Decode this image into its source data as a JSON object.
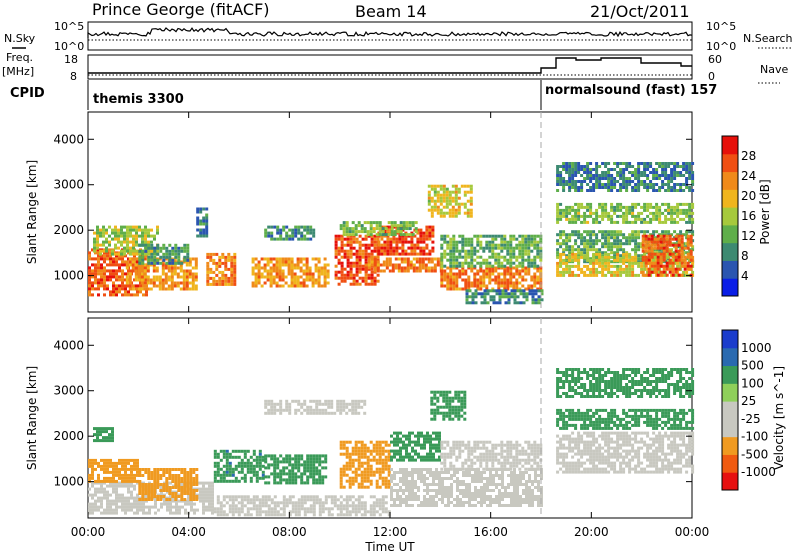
{
  "header": {
    "station": "Prince George (fitACF)",
    "beam": "Beam 14",
    "date": "21/Oct/2011"
  },
  "side_labels": {
    "nsky": "N.Sky",
    "nsearch": "N.Search",
    "freq_1": "Freq.",
    "freq_2": "[MHz]",
    "nave": "Nave",
    "cpid": "CPID"
  },
  "noise_panel": {
    "y_tick_top": "10^5",
    "y_tick_bottom": "10^0",
    "right_tick_top": "10^5",
    "right_tick_bottom": "10^0"
  },
  "freq_panel": {
    "y_ticks": [
      "18",
      "8"
    ],
    "right_ticks": [
      "60",
      "0"
    ]
  },
  "cpid": [
    {
      "label": "themis 3300",
      "start_hour": 0
    },
    {
      "label": "normalsound (fast) 157",
      "start_hour": 18.0
    }
  ],
  "axes": {
    "ylabel": "Slant Range [km]",
    "xlabel": "Time UT",
    "y_ticks": [
      "1000",
      "2000",
      "3000",
      "4000"
    ],
    "x_ticks": [
      "00:00",
      "04:00",
      "08:00",
      "12:00",
      "16:00",
      "20:00",
      "00:00"
    ]
  },
  "colors": {
    "power_scale": [
      "#0a1ee6",
      "#2a55b0",
      "#3d8a72",
      "#5fae4a",
      "#a6c93c",
      "#f0b51e",
      "#f08a1a",
      "#f04f12",
      "#e6100a"
    ],
    "velocity_scale": [
      "#e61010",
      "#f05a10",
      "#f09a20",
      "#c8c8c0",
      "#c8c8c0",
      "#8fd05a",
      "#3a9a58",
      "#2a6ab0",
      "#1a3ccc"
    ],
    "ground_scatter": "#c8c8c0"
  },
  "chart_data": [
    {
      "type": "heatmap",
      "title": "",
      "ylabel": "Slant Range [km]",
      "xlabel": "",
      "xlim": [
        0,
        24
      ],
      "ylim": [
        200,
        4600
      ],
      "colorbar": {
        "label": "Power [dB]",
        "ticks": [
          "4",
          "8",
          "12",
          "16",
          "20",
          "24",
          "28"
        ],
        "range": [
          0,
          32
        ]
      },
      "regions": [
        {
          "t0": 0.0,
          "t1": 2.3,
          "r0": 600,
          "r1": 1600,
          "value": 26
        },
        {
          "t0": 0.2,
          "t1": 2.8,
          "r0": 1500,
          "r1": 2100,
          "value": 16
        },
        {
          "t0": 1.5,
          "t1": 4.3,
          "r0": 700,
          "r1": 1400,
          "value": 22
        },
        {
          "t0": 2.0,
          "t1": 4.0,
          "r0": 1300,
          "r1": 1700,
          "value": 10
        },
        {
          "t0": 4.3,
          "t1": 4.7,
          "r0": 1900,
          "r1": 2500,
          "value": 8
        },
        {
          "t0": 4.7,
          "t1": 5.8,
          "r0": 800,
          "r1": 1500,
          "value": 24
        },
        {
          "t0": 6.5,
          "t1": 9.5,
          "r0": 800,
          "r1": 1400,
          "value": 22
        },
        {
          "t0": 7.0,
          "t1": 9.0,
          "r0": 1800,
          "r1": 2100,
          "value": 9
        },
        {
          "t0": 9.8,
          "t1": 11.5,
          "r0": 800,
          "r1": 1900,
          "value": 27
        },
        {
          "t0": 11.5,
          "t1": 13.7,
          "r0": 1500,
          "r1": 2100,
          "value": 27
        },
        {
          "t0": 10.0,
          "t1": 13.0,
          "r0": 1900,
          "r1": 2200,
          "value": 14
        },
        {
          "t0": 11.0,
          "t1": 14.0,
          "r0": 1100,
          "r1": 1400,
          "value": 24
        },
        {
          "t0": 13.5,
          "t1": 15.2,
          "r0": 2300,
          "r1": 3000,
          "value": 18
        },
        {
          "t0": 14.0,
          "t1": 18.0,
          "r0": 700,
          "r1": 1200,
          "value": 24
        },
        {
          "t0": 14.0,
          "t1": 18.0,
          "r0": 1200,
          "r1": 1900,
          "value": 12
        },
        {
          "t0": 15.0,
          "t1": 18.0,
          "r0": 400,
          "r1": 700,
          "value": 9
        },
        {
          "t0": 18.6,
          "t1": 24.0,
          "r0": 1300,
          "r1": 2000,
          "value": 12
        },
        {
          "t0": 18.6,
          "t1": 24.0,
          "r0": 1000,
          "r1": 1500,
          "value": 18
        },
        {
          "t0": 18.6,
          "t1": 24.0,
          "r0": 2200,
          "r1": 2600,
          "value": 14
        },
        {
          "t0": 18.6,
          "t1": 24.0,
          "r0": 2900,
          "r1": 3500,
          "value": 8
        },
        {
          "t0": 22.0,
          "t1": 24.0,
          "r0": 1000,
          "r1": 1900,
          "value": 26
        }
      ]
    },
    {
      "type": "heatmap",
      "title": "",
      "ylabel": "Slant Range [km]",
      "xlabel": "Time UT",
      "xlim": [
        0,
        24
      ],
      "ylim": [
        200,
        4600
      ],
      "colorbar": {
        "label": "Velocity [m s^-1]",
        "ticks": [
          "-1000",
          "-500",
          "-100",
          "-25",
          "25",
          "100",
          "500",
          "1000"
        ],
        "range": [
          -1200,
          1200
        ]
      },
      "regions": [
        {
          "t0": 0.0,
          "t1": 5.0,
          "r0": 300,
          "r1": 1000,
          "value": 0
        },
        {
          "t0": 0.0,
          "t1": 2.0,
          "r0": 1000,
          "r1": 1500,
          "value": -200
        },
        {
          "t0": 0.2,
          "t1": 1.0,
          "r0": 1900,
          "r1": 2200,
          "value": 150
        },
        {
          "t0": 2.0,
          "t1": 4.3,
          "r0": 600,
          "r1": 1300,
          "value": -300
        },
        {
          "t0": 5.0,
          "t1": 7.0,
          "r0": 1000,
          "r1": 1700,
          "value": 400
        },
        {
          "t0": 7.0,
          "t1": 9.5,
          "r0": 1000,
          "r1": 1600,
          "value": 150
        },
        {
          "t0": 5.0,
          "t1": 12.0,
          "r0": 300,
          "r1": 700,
          "value": 0
        },
        {
          "t0": 7.0,
          "t1": 11.0,
          "r0": 2500,
          "r1": 2800,
          "value": 0
        },
        {
          "t0": 10.0,
          "t1": 12.0,
          "r0": 900,
          "r1": 1900,
          "value": -250
        },
        {
          "t0": 12.0,
          "t1": 14.0,
          "r0": 1500,
          "r1": 2100,
          "value": 300
        },
        {
          "t0": 12.0,
          "t1": 18.0,
          "r0": 500,
          "r1": 1300,
          "value": 0
        },
        {
          "t0": 14.0,
          "t1": 18.0,
          "r0": 1300,
          "r1": 1900,
          "value": 0
        },
        {
          "t0": 13.6,
          "t1": 15.0,
          "r0": 2400,
          "r1": 3000,
          "value": 200
        },
        {
          "t0": 18.6,
          "t1": 24.0,
          "r0": 1200,
          "r1": 2100,
          "value": 0
        },
        {
          "t0": 18.6,
          "t1": 24.0,
          "r0": 2200,
          "r1": 2600,
          "value": 200
        },
        {
          "t0": 18.6,
          "t1": 24.0,
          "r0": 2900,
          "r1": 3500,
          "value": 150
        }
      ]
    }
  ]
}
